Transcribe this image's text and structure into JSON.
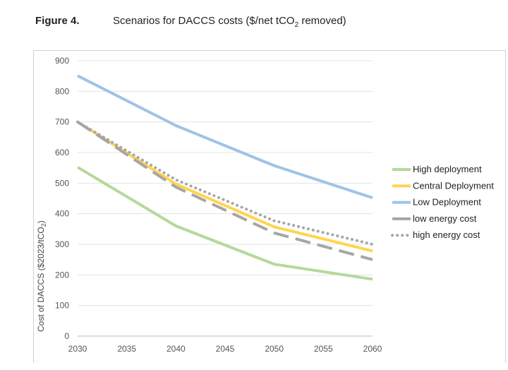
{
  "figure": {
    "label": "Figure 4.",
    "title_main": "Scenarios for DACCS costs ($/net tCO",
    "title_sub": "2",
    "title_tail": " removed)"
  },
  "chart_data": {
    "type": "line",
    "title": "Scenarios for DACCS costs ($/net tCO2 removed)",
    "xlabel": "",
    "ylabel_main": "Cost of DACCS ($2023/tCO",
    "ylabel_sub": "2",
    "ylabel_tail": ")",
    "x": [
      2030,
      2040,
      2050,
      2060
    ],
    "xlim": [
      2030,
      2060
    ],
    "xticks": [
      2030,
      2035,
      2040,
      2045,
      2050,
      2055,
      2060
    ],
    "ylim": [
      0,
      900
    ],
    "yticks": [
      0,
      100,
      200,
      300,
      400,
      500,
      600,
      700,
      800,
      900
    ],
    "grid": true,
    "legend_position": "right",
    "series": [
      {
        "name": "High deployment",
        "values": [
          552,
          360,
          235,
          186
        ],
        "color": "#b5d99c",
        "style": "solid"
      },
      {
        "name": "Central Deployment",
        "values": [
          700,
          497,
          357,
          278
        ],
        "color": "#ffd54f",
        "style": "solid"
      },
      {
        "name": "Low Deployment",
        "values": [
          851,
          688,
          557,
          452
        ],
        "color": "#9fc3e7",
        "style": "solid"
      },
      {
        "name": "low energy cost",
        "values": [
          700,
          487,
          337,
          250
        ],
        "color": "#a6a6a6",
        "style": "dashed"
      },
      {
        "name": "high energy cost",
        "values": [
          700,
          511,
          377,
          300
        ],
        "color": "#a6a6a6",
        "style": "dotted"
      }
    ]
  }
}
